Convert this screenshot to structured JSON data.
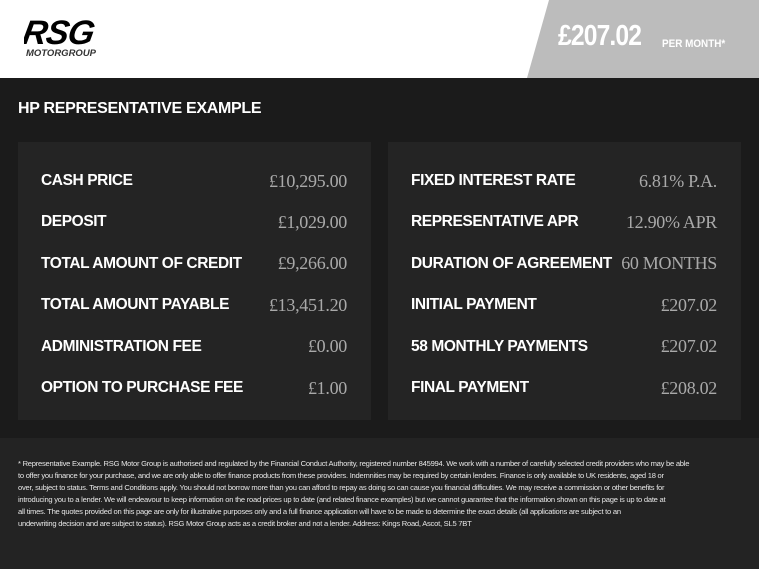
{
  "header": {
    "logo_text": "RSG",
    "logo_sub": "MOTORGROUP",
    "price": "£207.02",
    "per_month": "PER MONTH*"
  },
  "title": "HP REPRESENTATIVE EXAMPLE",
  "left": [
    {
      "label": "CASH PRICE",
      "value": "£10,295.00"
    },
    {
      "label": "DEPOSIT",
      "value": "£1,029.00"
    },
    {
      "label": "TOTAL AMOUNT OF CREDIT",
      "value": "£9,266.00"
    },
    {
      "label": "TOTAL AMOUNT PAYABLE",
      "value": "£13,451.20"
    },
    {
      "label": "ADMINISTRATION FEE",
      "value": "£0.00"
    },
    {
      "label": "OPTION TO PURCHASE FEE",
      "value": "£1.00"
    }
  ],
  "right": [
    {
      "label": "FIXED INTEREST RATE",
      "value": "6.81% P.A."
    },
    {
      "label": "REPRESENTATIVE APR",
      "value": "12.90% APR"
    },
    {
      "label": "DURATION OF AGREEMENT",
      "value": "60 MONTHS"
    },
    {
      "label": "INITIAL PAYMENT",
      "value": "£207.02"
    },
    {
      "label": "58 MONTHLY PAYMENTS",
      "value": "£207.02"
    },
    {
      "label": "FINAL PAYMENT",
      "value": "£208.02"
    }
  ],
  "disclaimer": [
    "* Representative Example. RSG Motor Group is authorised and regulated by the Financial Conduct Authority, registered number 845994. We work with a number of carefully selected credit providers who may be able",
    "to offer you finance for your purchase, and we are only able to offer finance products from these providers. Indemnities may be required by certain lenders. Finance is only available to UK residents, aged 18 or",
    "over, subject to status. Terms and Conditions apply. You should not borrow more than you can afford to repay as doing so can cause you financial difficulties. We may receive a commission or other benefits for",
    "introducing you to a lender. We will endeavour to keep information on the road prices up to date (and related finance examples) but we cannot guarantee that the information shown on this page is up to date at",
    "all times. The quotes provided on this page are only for illustrative purposes only and a full finance application will have to be made to determine the exact details (all applications are subject to an",
    "underwriting decision and are subject to status). RSG Motor Group acts as a credit broker and not a lender. Address: Kings Road, Ascot, SL5 7BT"
  ]
}
